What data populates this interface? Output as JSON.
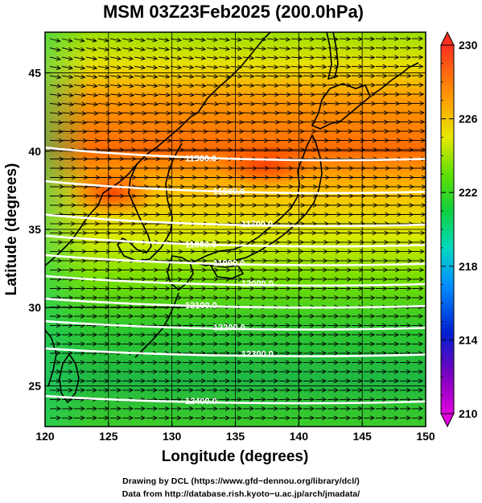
{
  "title": "MSM 03Z23Feb2025 (200.0hPa)",
  "map": {
    "xlabel": "Longitude (degrees)",
    "ylabel": "Latitude  (degrees)",
    "x_ticks": [
      "120",
      "125",
      "130",
      "135",
      "140",
      "145",
      "150"
    ],
    "y_ticks": [
      "25",
      "30",
      "35",
      "40",
      "45"
    ],
    "lon_range": [
      120,
      150
    ],
    "lat_range": [
      22.4,
      47.6
    ],
    "gridlines": true
  },
  "colorbar": {
    "ticks": [
      "210",
      "214",
      "218",
      "222",
      "226",
      "230"
    ],
    "range": [
      210,
      230
    ]
  },
  "contours": [
    {
      "label": "11500.0",
      "lat": 39.4
    },
    {
      "label": "11600.0",
      "lat": 37.3
    },
    {
      "label": "11700.0",
      "lat": 35.2
    },
    {
      "label": "11800.0",
      "lat": 33.9
    },
    {
      "label": "11900.0",
      "lat": 32.7
    },
    {
      "label": "12000.0",
      "lat": 31.4
    },
    {
      "label": "12100.0",
      "lat": 30.0
    },
    {
      "label": "12200.0",
      "lat": 28.6
    },
    {
      "label": "12300.0",
      "lat": 26.9
    },
    {
      "label": "12400.0",
      "lat": 23.9
    }
  ],
  "credits": {
    "line1": "Drawing by DCL (https://www.gfd−dennou.org/library/dcl/)",
    "line2": "Data from http://database.rish.kyoto−u.ac.jp/arch/jmadata/"
  }
}
